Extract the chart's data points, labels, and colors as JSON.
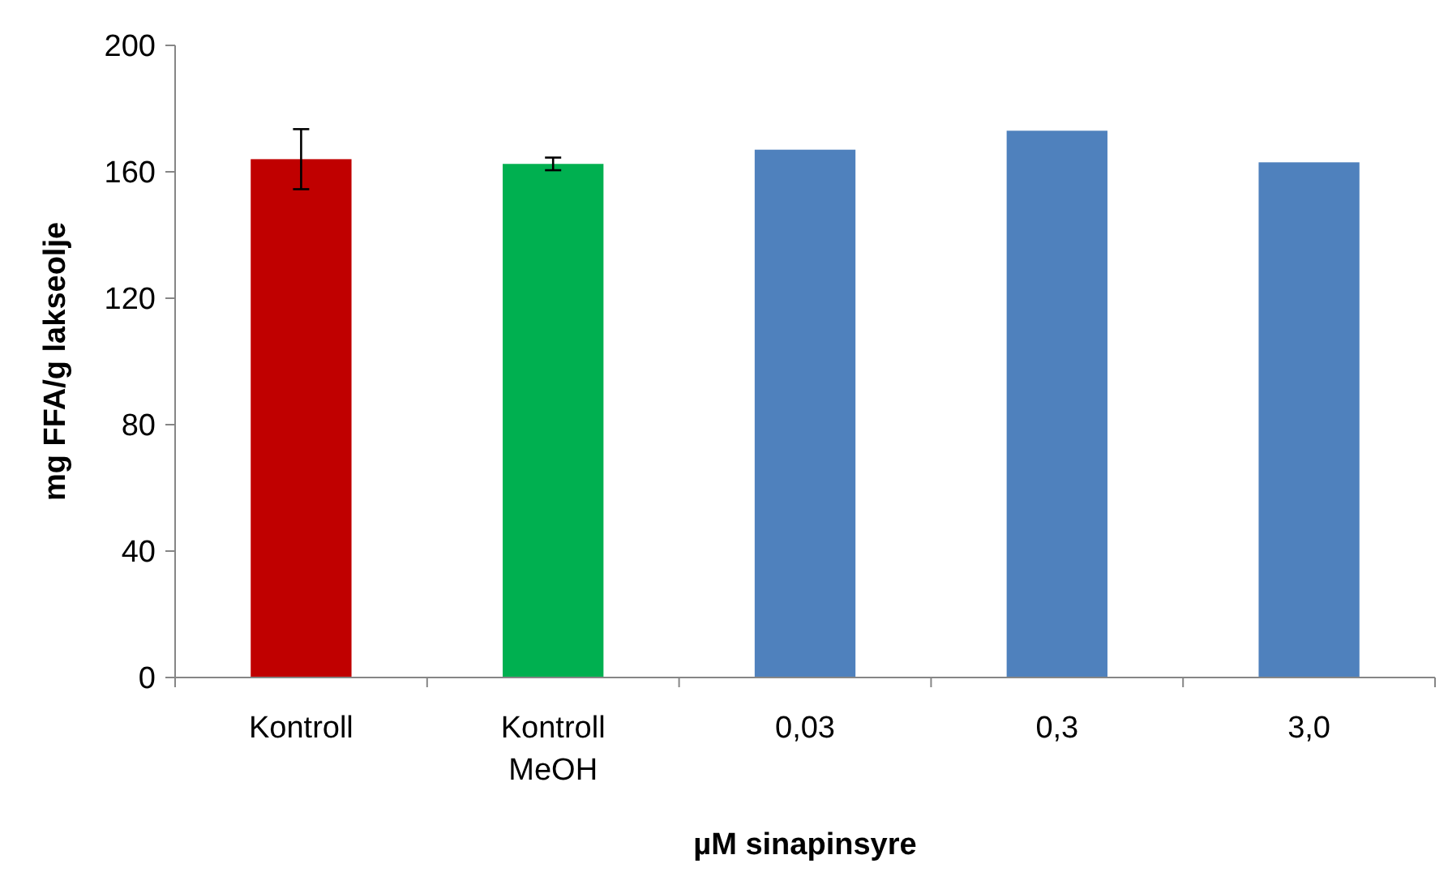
{
  "chart_data": {
    "type": "bar",
    "xlabel": "µM sinapinsyre",
    "ylabel": "mg FFA/g lakseolje",
    "categories": [
      "Kontroll",
      "Kontroll MeOH",
      "0,03",
      "0,3",
      "3,0"
    ],
    "values": [
      164,
      162.5,
      167,
      173,
      163
    ],
    "colors": [
      "#c00000",
      "#00b050",
      "#4f81bd",
      "#4f81bd",
      "#4f81bd"
    ],
    "errors": [
      9.5,
      2,
      null,
      null,
      null
    ],
    "ylim": [
      0,
      200
    ],
    "yticks": [
      0,
      40,
      80,
      120,
      160,
      200
    ],
    "grid": false
  }
}
